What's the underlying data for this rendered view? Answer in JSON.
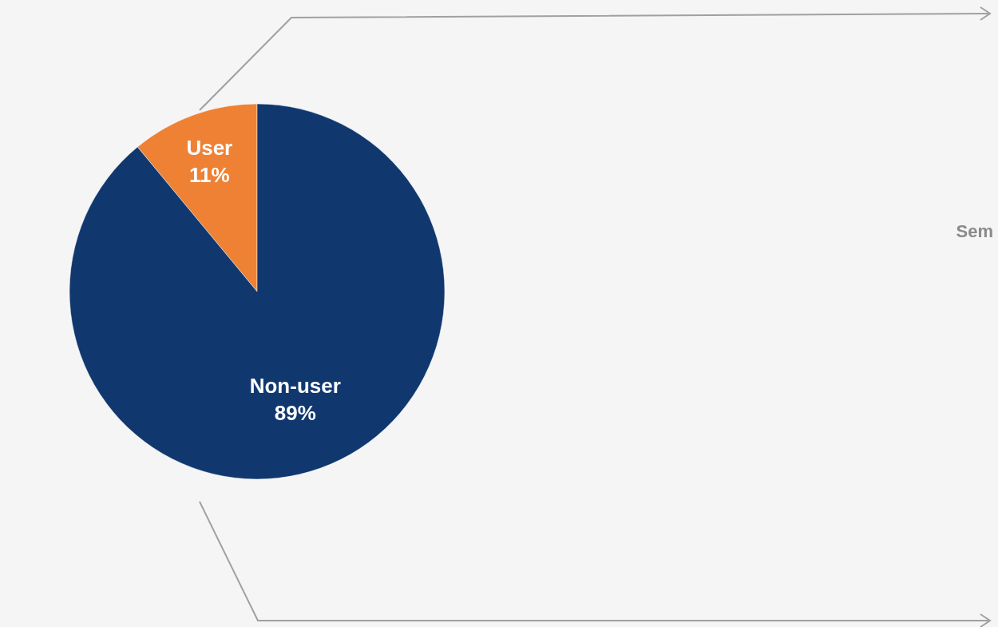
{
  "chart_data": {
    "type": "pie",
    "categories": [
      "User",
      "Non-user"
    ],
    "values": [
      11,
      89
    ],
    "colors": [
      "#ee8133",
      "#10386f"
    ],
    "value_labels": [
      "11%",
      "89%"
    ],
    "annotations": [
      "Sem"
    ]
  }
}
